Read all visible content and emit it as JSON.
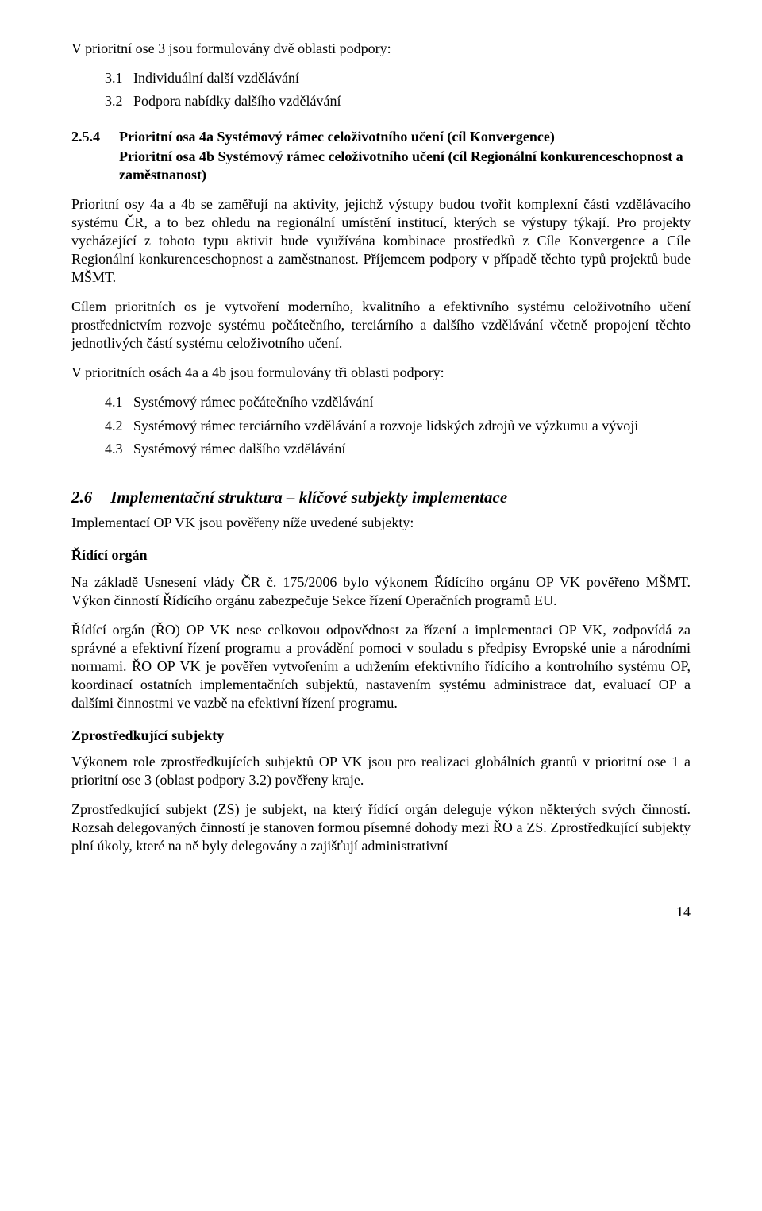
{
  "intro_line": "V prioritní ose 3 jsou formulovány dvě oblasti podpory:",
  "list_po3": [
    {
      "num": "3.1",
      "txt": "Individuální další vzdělávání"
    },
    {
      "num": "3.2",
      "txt": "Podpora nabídky dalšího vzdělávání"
    }
  ],
  "heading254": {
    "num": "2.5.4",
    "title_line1": "Prioritní osa 4a Systémový rámec celoživotního učení (cíl Konvergence)",
    "title_line2": "Prioritní osa 4b Systémový rámec celoživotního učení (cíl Regionální konkurenceschopnost a zaměstnanost)"
  },
  "p254_1": "Prioritní osy 4a a 4b se zaměřují na aktivity, jejichž výstupy budou tvořit  komplexní části vzdělávacího systému ČR, a to bez ohledu na regionální umístění institucí, kterých se výstupy týkají. Pro projekty vycházející z tohoto typu aktivit bude využívána kombinace prostředků z Cíle Konvergence a Cíle Regionální konkurenceschopnost a zaměstnanost. Příjemcem podpory v případě těchto typů projektů bude MŠMT.",
  "p254_2": "Cílem prioritních os je vytvoření moderního, kvalitního a efektivního systému celoživotního učení prostřednictvím rozvoje systému počátečního, terciárního a dalšího vzdělávání včetně propojení těchto jednotlivých částí systému celoživotního učení.",
  "p254_3": "V prioritních osách 4a a 4b jsou formulovány tři oblasti podpory:",
  "list_po4": [
    {
      "num": "4.1",
      "txt": "Systémový rámec počátečního vzdělávání"
    },
    {
      "num": "4.2",
      "txt": "Systémový rámec terciárního vzdělávání a rozvoje lidských zdrojů ve výzkumu a vývoji"
    },
    {
      "num": "4.3",
      "txt": "Systémový rámec dalšího vzdělávání"
    }
  ],
  "sec26": {
    "num": "2.6",
    "title": "Implementační struktura – klíčové subjekty implementace"
  },
  "p26_intro": "Implementací OP VK jsou pověřeny níže uvedené subjekty:",
  "ro_label": "Řídící orgán",
  "ro_p1": "Na základě Usnesení vlády ČR č. 175/2006 bylo výkonem Řídícího orgánu OP VK pověřeno MŠMT. Výkon činností Řídícího orgánu zabezpečuje Sekce řízení Operačních programů EU.",
  "ro_p2": "Řídící orgán (ŘO) OP VK nese celkovou odpovědnost za řízení a implementaci OP VK, zodpovídá za správné a efektivní  řízení programu a provádění pomoci v souladu s předpisy Evropské unie a národními normami. ŘO OP VK je pověřen vytvořením a udržením efektivního řídícího a kontrolního systému OP, koordinací ostatních implementačních subjektů, nastavením systému administrace dat, evaluací OP a dalšími činnostmi ve vazbě na efektivní řízení programu.",
  "zs_label": "Zprostředkující subjekty",
  "zs_p1": "Výkonem role zprostředkujících subjektů OP VK jsou pro realizaci globálních grantů v prioritní ose 1 a prioritní ose 3 (oblast podpory 3.2) pověřeny kraje.",
  "zs_p2": "Zprostředkující subjekt (ZS) je subjekt, na který řídící orgán deleguje výkon některých svých činností. Rozsah delegovaných činností je stanoven formou písemné dohody mezi ŘO a ZS. Zprostředkující subjekty plní úkoly, které na ně byly delegovány a zajišťují administrativní",
  "page_number": "14"
}
